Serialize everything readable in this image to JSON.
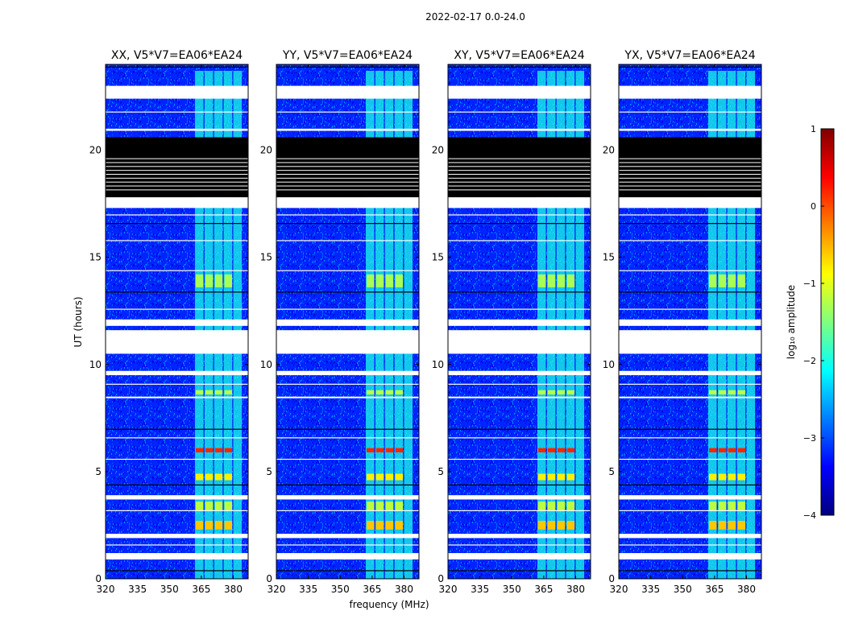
{
  "figure": {
    "suptitle": "2022-02-17 0.0-24.0",
    "xlabel": "frequency (MHz)",
    "ylabel": "UT (hours)"
  },
  "colorbar": {
    "label": "log₁₀ amplitude",
    "range": [
      -4,
      1
    ],
    "ticks": [
      "1",
      "0",
      "−1",
      "−2",
      "−3",
      "−4"
    ],
    "tick_values": [
      1,
      0,
      -1,
      -2,
      -3,
      -4
    ],
    "colormap": [
      "#00007f",
      "#0000ff",
      "#007fff",
      "#00ffff",
      "#7fff7f",
      "#ffff00",
      "#ff7f00",
      "#ff0000",
      "#7f0000"
    ]
  },
  "chart_data": {
    "type": "heatmap",
    "title": "2022-02-17 0.0-24.0",
    "xlabel": "frequency (MHz)",
    "ylabel": "UT (hours)",
    "xlim": [
      320,
      387
    ],
    "ylim": [
      0,
      24
    ],
    "xticks": [
      320,
      335,
      350,
      365,
      380
    ],
    "yticks": [
      0,
      5,
      10,
      15,
      20
    ],
    "panels": [
      {
        "title": "XX, V5*V7=EA06*EA24",
        "polarization": "XX"
      },
      {
        "title": "YY, V5*V7=EA06*EA24",
        "polarization": "YY"
      },
      {
        "title": "XY, V5*V7=EA06*EA24",
        "polarization": "XY"
      },
      {
        "title": "YX, V5*V7=EA06*EA24",
        "polarization": "YX"
      }
    ],
    "background_log_amplitude": -3.2,
    "rfi_band_mhz": [
      362,
      381
    ],
    "rfi_channels_mhz": [
      362,
      366.5,
      371,
      375.5,
      380
    ],
    "rfi_log_amplitude": -2.0,
    "bright_rfi_events": [
      {
        "ut": [
          13.6,
          14.2
        ],
        "log_amplitude": -1.3
      },
      {
        "ut": [
          8.6,
          8.8
        ],
        "log_amplitude": -1.2
      },
      {
        "ut": [
          5.9,
          6.1
        ],
        "log_amplitude": 0.2
      },
      {
        "ut": [
          4.6,
          4.9
        ],
        "log_amplitude": -0.8
      },
      {
        "ut": [
          3.2,
          3.6
        ],
        "log_amplitude": -1.2
      },
      {
        "ut": [
          2.3,
          2.7
        ],
        "log_amplitude": -0.6
      }
    ],
    "flagged_blank_ut": [
      [
        23.0,
        22.4
      ],
      [
        21.0,
        20.9
      ],
      [
        17.8,
        17.3
      ],
      [
        12.1,
        11.8
      ],
      [
        11.6,
        10.5
      ],
      [
        9.7,
        9.5
      ],
      [
        8.5,
        8.45
      ],
      [
        3.9,
        3.7
      ],
      [
        2.1,
        1.9
      ],
      [
        1.2,
        0.9
      ]
    ],
    "flagged_dark_ut": [
      20.6,
      17.8
    ],
    "colorbar_range": [
      -4,
      1
    ]
  }
}
